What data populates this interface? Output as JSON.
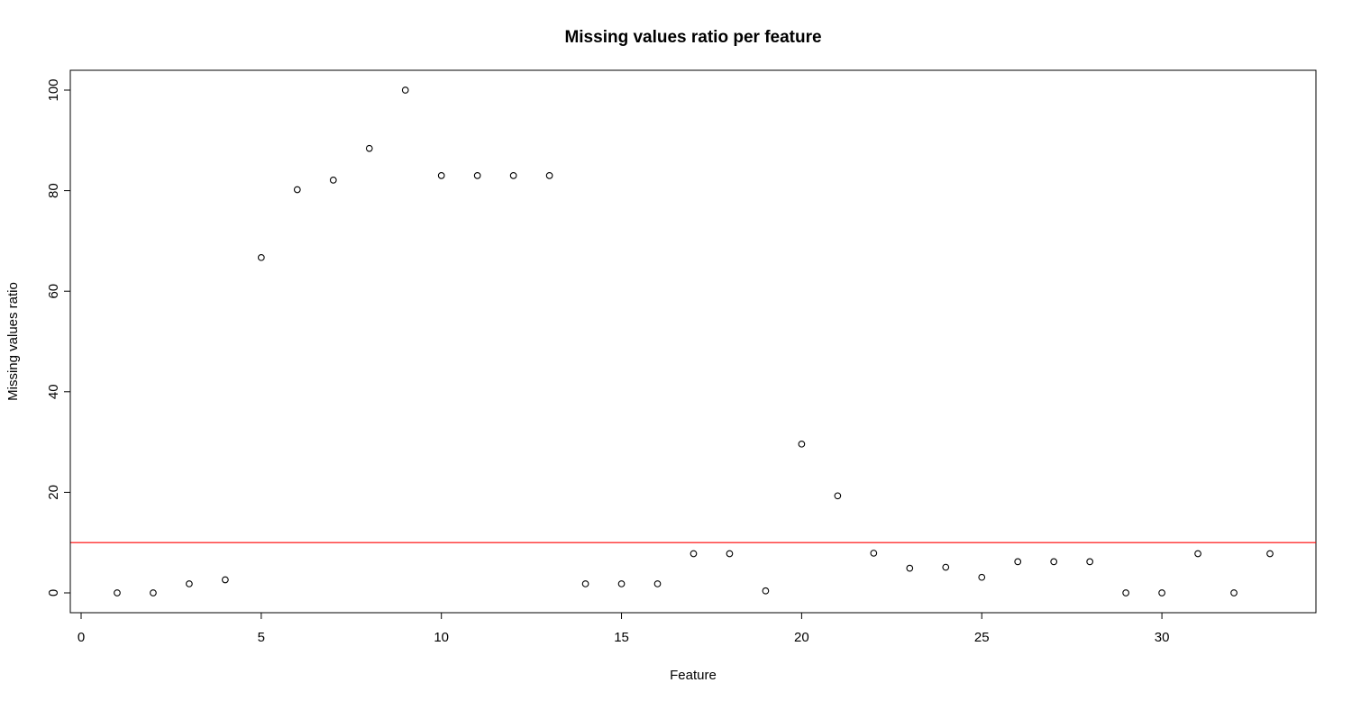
{
  "chart_data": {
    "type": "scatter",
    "title": "Missing values ratio per feature",
    "xlabel": "Feature",
    "ylabel": "Missing values ratio",
    "xlim": [
      0,
      34
    ],
    "ylim": [
      0,
      100
    ],
    "xticks": [
      0,
      5,
      10,
      15,
      20,
      25,
      30
    ],
    "yticks": [
      0,
      20,
      40,
      60,
      80,
      100
    ],
    "grid": false,
    "colors": {
      "points": "#000000",
      "threshold": "#ff0000"
    },
    "threshold_line": {
      "y": 10
    },
    "points": [
      {
        "x": 1,
        "y": 0
      },
      {
        "x": 2,
        "y": 0
      },
      {
        "x": 3,
        "y": 1.8
      },
      {
        "x": 4,
        "y": 2.6
      },
      {
        "x": 5,
        "y": 66.7
      },
      {
        "x": 6,
        "y": 80.2
      },
      {
        "x": 7,
        "y": 82.1
      },
      {
        "x": 8,
        "y": 88.4
      },
      {
        "x": 9,
        "y": 100
      },
      {
        "x": 10,
        "y": 83.0
      },
      {
        "x": 11,
        "y": 83.0
      },
      {
        "x": 12,
        "y": 83.0
      },
      {
        "x": 13,
        "y": 83.0
      },
      {
        "x": 14,
        "y": 1.8
      },
      {
        "x": 15,
        "y": 1.8
      },
      {
        "x": 16,
        "y": 1.8
      },
      {
        "x": 17,
        "y": 7.8
      },
      {
        "x": 18,
        "y": 7.8
      },
      {
        "x": 19,
        "y": 0.4
      },
      {
        "x": 20,
        "y": 29.6
      },
      {
        "x": 21,
        "y": 19.3
      },
      {
        "x": 22,
        "y": 7.9
      },
      {
        "x": 23,
        "y": 4.9
      },
      {
        "x": 24,
        "y": 5.1
      },
      {
        "x": 25,
        "y": 3.1
      },
      {
        "x": 26,
        "y": 6.2
      },
      {
        "x": 27,
        "y": 6.2
      },
      {
        "x": 28,
        "y": 6.2
      },
      {
        "x": 29,
        "y": 0
      },
      {
        "x": 30,
        "y": 0
      },
      {
        "x": 31,
        "y": 7.8
      },
      {
        "x": 32,
        "y": 0
      },
      {
        "x": 33,
        "y": 7.8
      }
    ]
  }
}
